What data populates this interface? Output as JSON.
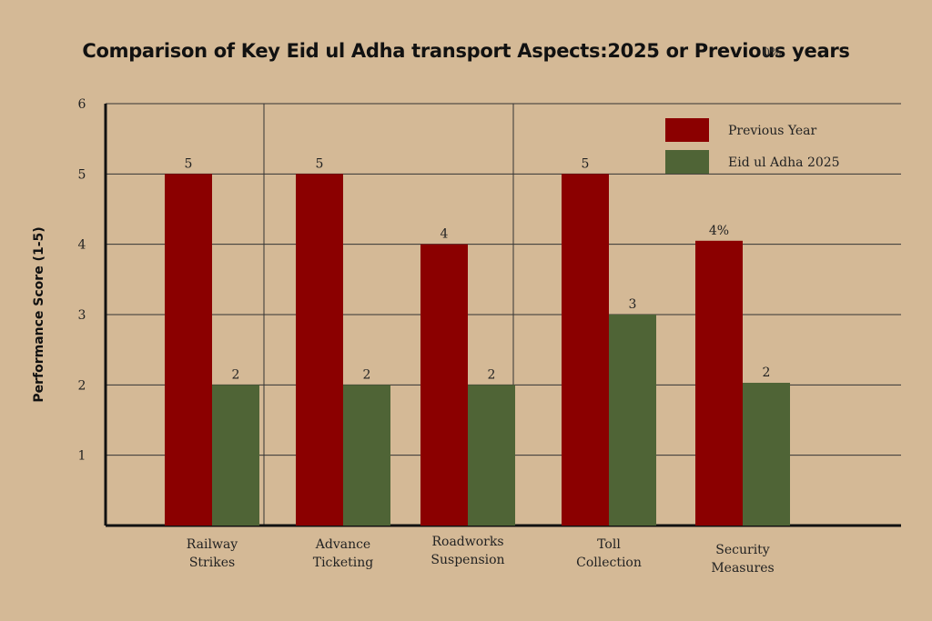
{
  "chart_data": {
    "type": "bar",
    "title": "Comparison of Key Eid ul Adha transport Aspects:2025 or Previous years",
    "title_overlay": "0%",
    "ylabel": "Performance Score (1-5)",
    "xlabel": "",
    "ylim": [
      0,
      6
    ],
    "yticks": [
      1,
      2,
      3,
      4,
      5,
      6
    ],
    "grid": true,
    "legend": "top-right",
    "categories": [
      [
        "Railway",
        "Strikes"
      ],
      [
        "Advance",
        "Ticketing"
      ],
      [
        "Roadworks",
        "Suspension"
      ],
      [
        "Toll",
        "Collection"
      ],
      [
        "Security",
        "Measures"
      ]
    ],
    "series": [
      {
        "name": "Previous Year",
        "color": "#8b0000",
        "values": [
          5,
          5,
          4,
          5,
          4.05
        ],
        "labels": [
          "5",
          "5",
          "4",
          "5",
          "4%"
        ]
      },
      {
        "name": "Eid ul Adha 2025",
        "color": "#4f6436",
        "values": [
          2,
          2,
          2,
          3,
          2.03
        ],
        "labels": [
          "2",
          "2",
          "2",
          "3",
          "2"
        ]
      }
    ]
  }
}
